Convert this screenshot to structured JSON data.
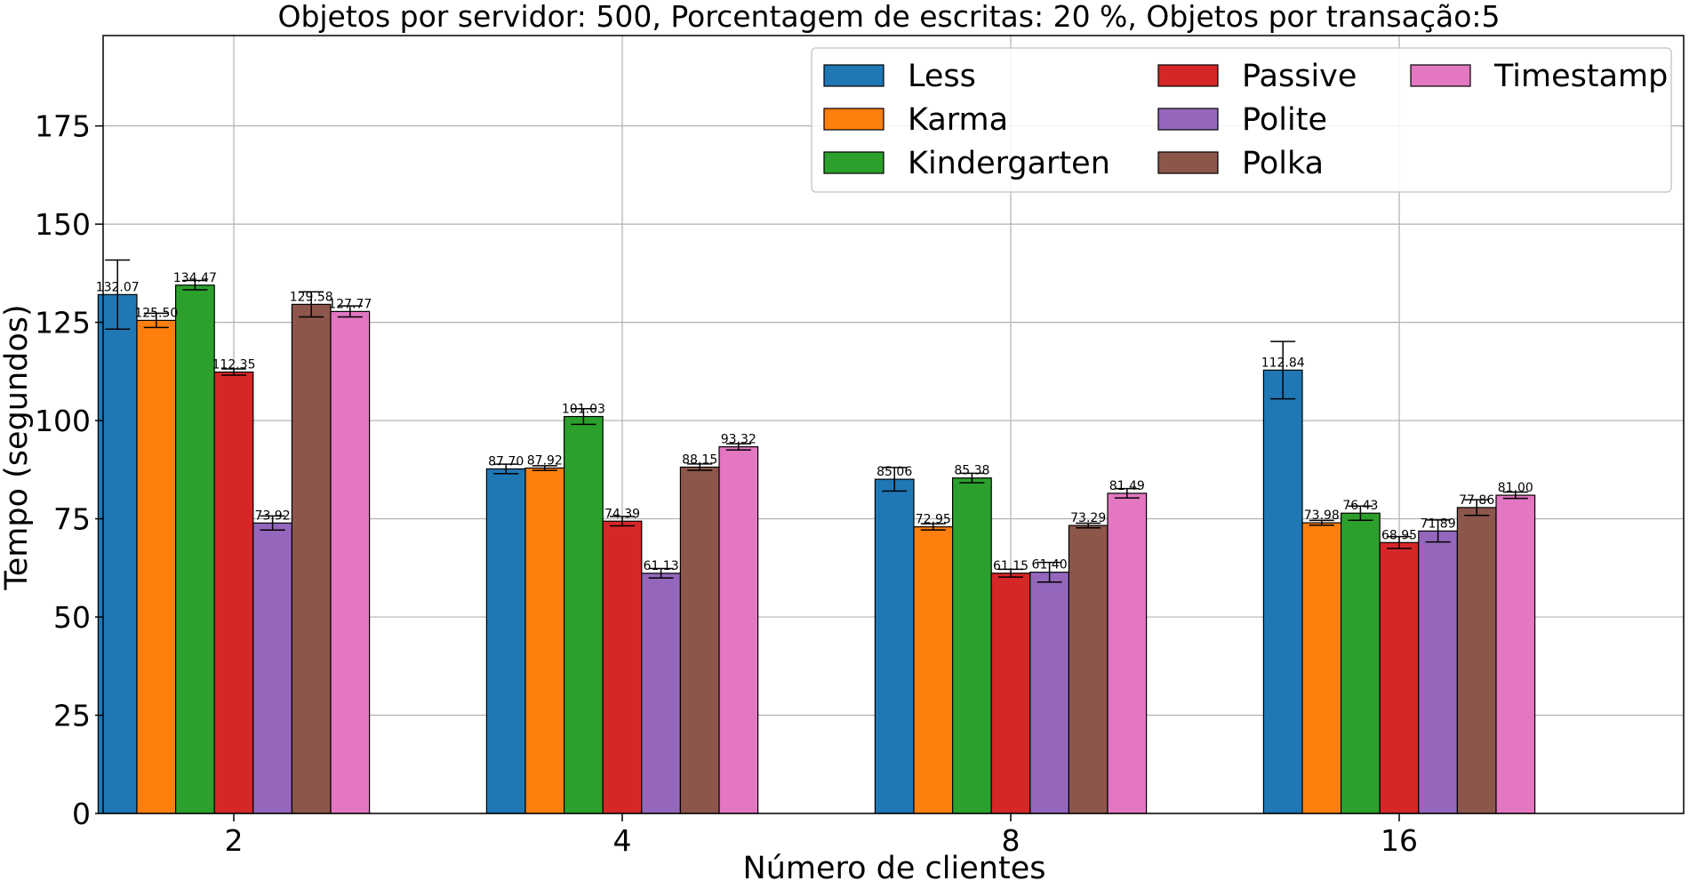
{
  "chart_data": {
    "type": "bar",
    "title": "Objetos por servidor: 500, Porcentagem de escritas: 20 %, Objetos por transação:5",
    "xlabel": "Número de clientes",
    "ylabel": "Tempo (segundos)",
    "categories": [
      "2",
      "4",
      "8",
      "16"
    ],
    "ylim": [
      0,
      198
    ],
    "yticks": [
      0,
      25,
      50,
      75,
      100,
      125,
      150,
      175
    ],
    "grid": true,
    "legend_position": "top-right",
    "error_bars": true,
    "series": [
      {
        "name": "Less",
        "color": "#1f77b4",
        "values": [
          132.07,
          87.7,
          85.06,
          112.84
        ],
        "labels": [
          "132.07",
          "87.70",
          "85.06",
          "112.84"
        ],
        "err": [
          8.8,
          1.2,
          3.0,
          7.3
        ]
      },
      {
        "name": "Karma",
        "color": "#ff7f0e",
        "values": [
          125.5,
          87.92,
          72.95,
          73.98
        ],
        "labels": [
          "125.50",
          "87.92",
          "72.95",
          "73.98"
        ],
        "err": [
          1.8,
          0.6,
          0.8,
          0.6
        ]
      },
      {
        "name": "Kindergarten",
        "color": "#2ca02c",
        "values": [
          134.47,
          101.03,
          85.38,
          76.43
        ],
        "labels": [
          "134.47",
          "101.03",
          "85.38",
          "76.43"
        ],
        "err": [
          1.2,
          2.0,
          1.2,
          1.8
        ]
      },
      {
        "name": "Passive",
        "color": "#d62728",
        "values": [
          112.35,
          74.39,
          61.15,
          68.95
        ],
        "labels": [
          "112.35",
          "74.39",
          "61.15",
          "68.95"
        ],
        "err": [
          0.8,
          1.2,
          1.0,
          1.5
        ]
      },
      {
        "name": "Polite",
        "color": "#9467bd",
        "values": [
          73.92,
          61.13,
          61.4,
          71.89
        ],
        "labels": [
          "73.92",
          "61.13",
          "61.40",
          "71.89"
        ],
        "err": [
          1.8,
          1.2,
          2.5,
          2.8
        ]
      },
      {
        "name": "Polka",
        "color": "#8c564b",
        "values": [
          129.58,
          88.15,
          73.29,
          77.86
        ],
        "labels": [
          "129.58",
          "88.15",
          "73.29",
          "77.86"
        ],
        "err": [
          3.2,
          0.8,
          0.6,
          2.0
        ]
      },
      {
        "name": "Timestamp",
        "color": "#e377c2",
        "values": [
          127.77,
          93.32,
          81.49,
          81.0
        ],
        "labels": [
          "127.77",
          "93.32",
          "81.49",
          "81.00"
        ],
        "err": [
          1.4,
          0.8,
          1.2,
          0.8
        ]
      }
    ]
  }
}
